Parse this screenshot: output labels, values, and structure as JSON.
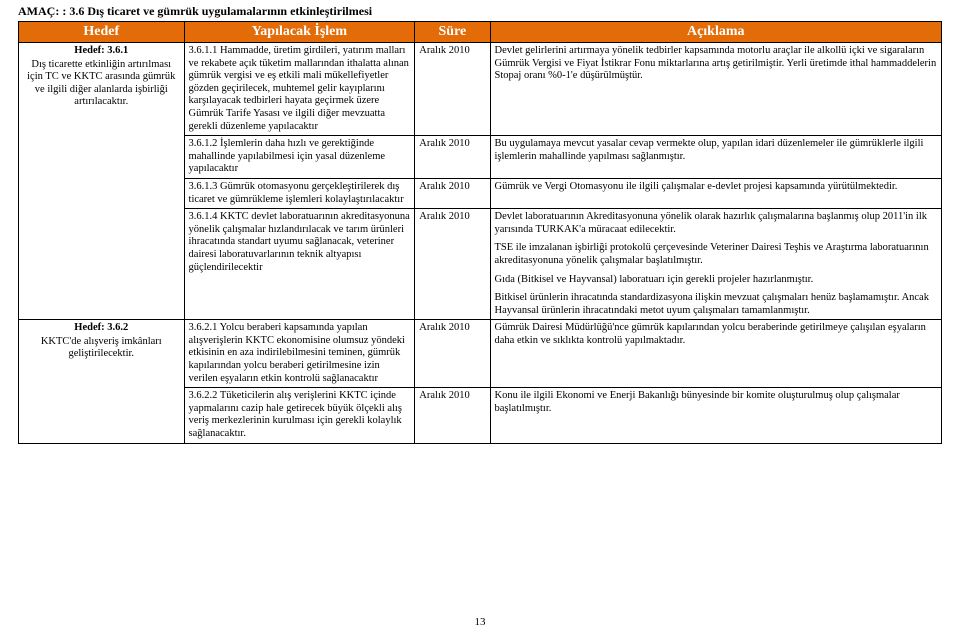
{
  "amac": "AMAÇ: : 3.6 Dış ticaret ve gümrük uygulamalarının etkinleştirilmesi",
  "headers": {
    "h1": "Hedef",
    "h2": "Yapılacak İşlem",
    "h3": "Süre",
    "h4": "Açıklama"
  },
  "row1": {
    "hedef_code": "Hedef: 3.6.1",
    "hedef_text": "Dış ticarette etkinliğin artırılması için TC ve KKTC arasında gümrük ve ilgili diğer alanlarda işbirliği artırılacaktır.",
    "i1": "3.6.1.1 Hammadde, üretim girdileri, yatırım malları ve rekabete açık tüketim mallarından ithalatta alınan gümrük vergisi ve eş etkili mali mükellefiyetler gözden geçirilecek, muhtemel gelir kayıplarını karşılayacak tedbirleri hayata geçirmek üzere Gümrük Tarife Yasası ve ilgili diğer mevzuatta gerekli düzenleme yapılacaktır",
    "s1": "Aralık 2010",
    "a1": "Devlet gelirlerini artırmaya yönelik tedbirler kapsamında motorlu araçlar ile alkollü içki ve sigaraların Gümrük Vergisi ve Fiyat İstikrar Fonu miktarlarına artış getirilmiştir. Yerli üretimde ithal hammaddelerin Stopaj oranı %0-1'e düşürülmüştür.",
    "i2": "3.6.1.2 İşlemlerin daha hızlı ve gerektiğinde mahallinde yapılabilmesi için yasal düzenleme yapılacaktır",
    "s2": "Aralık 2010",
    "a2": "Bu uygulamaya mevcut yasalar cevap vermekte olup, yapılan idari düzenlemeler ile gümrüklerle ilgili işlemlerin mahallinde yapılması sağlanmıştır.",
    "i3": "3.6.1.3 Gümrük otomasyonu gerçekleştirilerek dış ticaret ve gümrükleme işlemleri kolaylaştırılacaktır",
    "s3": "Aralık 2010",
    "a3": "Gümrük ve Vergi Otomasyonu ile ilgili çalışmalar e-devlet projesi kapsamında yürütülmektedir.",
    "i4": "3.6.1.4 KKTC devlet laboratuarının akreditasyonuna yönelik çalışmalar hızlandırılacak ve tarım ürünleri ihracatında standart uyumu sağlanacak, veteriner dairesi laboratuvarlarının teknik altyapısı güçlendirilecektir",
    "s4": "Aralık 2010",
    "a4p1": "Devlet laboratuarının Akreditasyonuna yönelik olarak hazırlık çalışmalarına başlanmış olup 2011'in ilk yarısında TURKAK'a müracaat edilecektir.",
    "a4p2": "TSE ile imzalanan işbirliği protokolü çerçevesinde Veteriner Dairesi Teşhis ve Araştırma laboratuarının akreditasyonuna yönelik çalışmalar başlatılmıştır.",
    "a4p3": "Gıda (Bitkisel ve Hayvansal) laboratuarı için gerekli projeler hazırlanmıştır.",
    "a4p4": "Bitkisel ürünlerin ihracatında standardizasyona ilişkin mevzuat çalışmaları henüz başlamamıştır. Ancak Hayvansal ürünlerin ihracatındaki metot uyum çalışmaları tamamlanmıştır."
  },
  "row2": {
    "hedef_code": "Hedef: 3.6.2",
    "hedef_text": "KKTC'de alışveriş imkânları geliştirilecektir.",
    "i1": "3.6.2.1 Yolcu beraberi kapsamında yapılan alışverişlerin KKTC ekonomisine olumsuz yöndeki etkisinin en aza indirilebilmesini teminen, gümrük kapılarından yolcu beraberi getirilmesine izin verilen eşyaların etkin kontrolü sağlanacaktır",
    "s1": "Aralık 2010",
    "a1": "Gümrük Dairesi Müdürlüğü'nce gümrük kapılarından yolcu beraberinde getirilmeye çalışılan eşyaların daha etkin ve sıklıkta kontrolü yapılmaktadır.",
    "i2": "3.6.2.2 Tüketicilerin alış verişlerini KKTC içinde yapmalarını cazip hale getirecek büyük ölçekli alış veriş merkezlerinin kurulması için gerekli kolaylık sağlanacaktır.",
    "s2": "Aralık 2010",
    "a2": "Konu ile ilgili Ekonomi ve Enerji Bakanlığı bünyesinde bir komite oluşturulmuş olup çalışmalar başlatılmıştır."
  },
  "page": "13"
}
